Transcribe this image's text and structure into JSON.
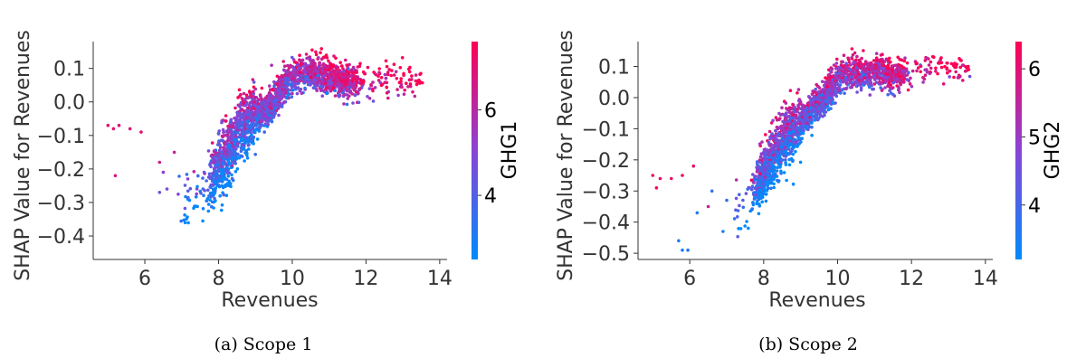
{
  "chart_data": [
    {
      "type": "scatter",
      "caption": "(a) Scope 1",
      "xlabel": "Revenues",
      "ylabel": "SHAP Value for Revenues",
      "xlim": [
        4.6,
        14.2
      ],
      "ylim": [
        -0.47,
        0.18
      ],
      "xticks": [
        6,
        8,
        10,
        12,
        14
      ],
      "yticks": [
        -0.4,
        -0.3,
        -0.2,
        -0.1,
        0.0,
        0.1
      ],
      "ytick_labels": [
        "−0.4",
        "−0.3",
        "−0.2",
        "−0.1",
        "0.0",
        "0.1"
      ],
      "colorbar": {
        "label": "GHG1",
        "range": [
          2.5,
          7.6
        ],
        "ticks": [
          4,
          6
        ],
        "colormap": [
          "#008afb",
          "#8a43d6",
          "#ff0052"
        ]
      },
      "trend": [
        [
          6.9,
          -0.31
        ],
        [
          7.3,
          -0.28
        ],
        [
          7.7,
          -0.25
        ],
        [
          8.0,
          -0.2
        ],
        [
          8.3,
          -0.14
        ],
        [
          8.6,
          -0.08
        ],
        [
          8.9,
          -0.04
        ],
        [
          9.2,
          -0.03
        ],
        [
          9.5,
          0.0
        ],
        [
          9.8,
          0.05
        ],
        [
          10.1,
          0.08
        ],
        [
          10.5,
          0.09
        ],
        [
          11.0,
          0.07
        ],
        [
          11.5,
          0.06
        ],
        [
          12.0,
          0.06
        ],
        [
          12.5,
          0.06
        ],
        [
          13.0,
          0.07
        ],
        [
          13.6,
          0.06
        ]
      ],
      "outliers": [
        [
          5.0,
          -0.07,
          7.0
        ],
        [
          5.15,
          -0.08,
          7.1
        ],
        [
          5.3,
          -0.07,
          6.8
        ],
        [
          5.6,
          -0.08,
          6.9
        ],
        [
          5.2,
          -0.22,
          6.7
        ],
        [
          5.9,
          -0.09,
          7.0
        ],
        [
          6.4,
          -0.18,
          6.5
        ],
        [
          6.5,
          -0.21,
          5.2
        ],
        [
          6.4,
          -0.27,
          4.4
        ],
        [
          6.8,
          -0.15,
          6.2
        ],
        [
          6.6,
          -0.26,
          4.7
        ]
      ]
    },
    {
      "type": "scatter",
      "caption": "(b) Scope 2",
      "xlabel": "Revenues",
      "ylabel": "SHAP Value for Revenues",
      "xlim": [
        4.6,
        14.2
      ],
      "ylim": [
        -0.52,
        0.18
      ],
      "xticks": [
        6,
        8,
        10,
        12,
        14
      ],
      "yticks": [
        -0.5,
        -0.4,
        -0.3,
        -0.2,
        -0.1,
        0.0,
        0.1
      ],
      "ytick_labels": [
        "−0.5",
        "−0.4",
        "−0.3",
        "−0.2",
        "−0.1",
        "0.0",
        "0.1"
      ],
      "colorbar": {
        "label": "GHG2",
        "range": [
          3.2,
          6.4
        ],
        "ticks": [
          4,
          5,
          6
        ],
        "colormap": [
          "#008afb",
          "#8a43d6",
          "#ff0052"
        ]
      },
      "trend": [
        [
          7.2,
          -0.38
        ],
        [
          7.6,
          -0.34
        ],
        [
          8.0,
          -0.25
        ],
        [
          8.4,
          -0.16
        ],
        [
          8.8,
          -0.1
        ],
        [
          9.2,
          -0.05
        ],
        [
          9.6,
          0.0
        ],
        [
          10.0,
          0.06
        ],
        [
          10.5,
          0.08
        ],
        [
          11.0,
          0.08
        ],
        [
          11.5,
          0.07
        ],
        [
          12.0,
          0.09
        ],
        [
          12.5,
          0.1
        ],
        [
          13.0,
          0.1
        ],
        [
          13.5,
          0.08
        ]
      ],
      "outliers": [
        [
          5.0,
          -0.25,
          6.2
        ],
        [
          5.2,
          -0.26,
          6.1
        ],
        [
          5.1,
          -0.29,
          6.3
        ],
        [
          5.5,
          -0.26,
          6.0
        ],
        [
          5.8,
          -0.25,
          6.2
        ],
        [
          6.1,
          -0.22,
          6.1
        ],
        [
          5.7,
          -0.46,
          3.5
        ],
        [
          5.95,
          -0.49,
          3.6
        ],
        [
          5.8,
          -0.49,
          3.4
        ],
        [
          6.2,
          -0.37,
          3.6
        ],
        [
          6.5,
          -0.35,
          5.6
        ],
        [
          6.6,
          -0.3,
          3.8
        ],
        [
          7.0,
          -0.33,
          3.7
        ],
        [
          6.9,
          -0.43,
          3.5
        ]
      ]
    }
  ]
}
